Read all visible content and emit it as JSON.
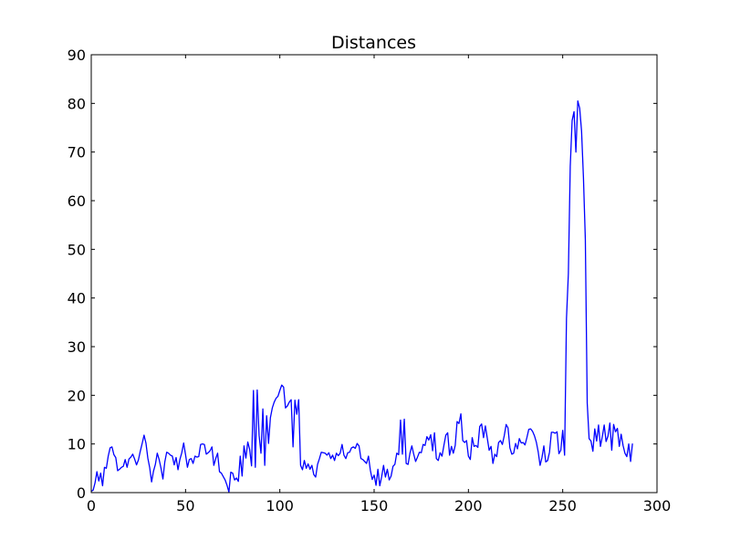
{
  "chart_data": {
    "type": "line",
    "title": "Distances",
    "xlabel": "",
    "ylabel": "",
    "xlim": [
      0,
      300
    ],
    "ylim": [
      0,
      90
    ],
    "x_ticks": [
      0,
      50,
      100,
      150,
      200,
      250,
      300
    ],
    "y_ticks": [
      0,
      10,
      20,
      30,
      40,
      50,
      60,
      70,
      80,
      90
    ],
    "grid": false,
    "legend": "none",
    "line_color": "#0000ff",
    "series": [
      {
        "x_start": 0,
        "x_step": 1,
        "values": [
          0.3,
          0.5,
          2.0,
          4.3,
          2.4,
          4.0,
          1.4,
          5.2,
          5.0,
          7.5,
          9.2,
          9.4,
          7.8,
          7.2,
          4.5,
          4.8,
          5.2,
          5.4,
          6.8,
          5.2,
          6.9,
          7.3,
          7.9,
          6.9,
          5.7,
          6.7,
          8.5,
          10.1,
          11.8,
          10.2,
          7.1,
          5.1,
          2.2,
          4.4,
          5.8,
          8.1,
          6.8,
          5.0,
          2.8,
          6.3,
          8.3,
          8.1,
          7.7,
          7.5,
          5.7,
          7.2,
          4.7,
          6.8,
          8.2,
          10.2,
          7.8,
          5.2,
          6.8,
          7.0,
          6.0,
          7.5,
          7.3,
          7.4,
          9.9,
          10.0,
          9.9,
          7.9,
          8.2,
          8.6,
          9.4,
          5.6,
          7.0,
          8.1,
          4.3,
          4.0,
          3.3,
          2.6,
          1.5,
          0.1,
          4.2,
          4.0,
          2.6,
          3.0,
          2.3,
          7.5,
          3.4,
          9.6,
          7.1,
          10.4,
          8.9,
          5.5,
          21.0,
          5.2,
          21.1,
          11.8,
          8.1,
          17.2,
          5.6,
          15.8,
          10.1,
          15.4,
          17.4,
          18.6,
          19.4,
          19.8,
          21.0,
          22.1,
          21.7,
          17.4,
          17.8,
          18.6,
          19.1,
          9.4,
          19.0,
          16.1,
          19.1,
          5.6,
          4.7,
          6.6,
          5.0,
          5.9,
          4.8,
          5.6,
          3.7,
          3.2,
          5.8,
          7.0,
          8.3,
          8.2,
          8.1,
          7.7,
          8.2,
          7.0,
          7.7,
          6.6,
          8.1,
          7.6,
          8.1,
          9.9,
          7.7,
          7.0,
          8.2,
          8.3,
          9.2,
          9.4,
          9.1,
          10.1,
          9.6,
          7.0,
          6.8,
          6.4,
          6.0,
          7.5,
          4.6,
          2.7,
          3.6,
          1.5,
          4.8,
          1.4,
          3.3,
          5.6,
          3.2,
          4.8,
          2.6,
          3.4,
          5.4,
          5.8,
          8.1,
          7.8,
          14.9,
          7.9,
          15.1,
          6.0,
          5.8,
          8.1,
          9.6,
          7.9,
          6.4,
          7.3,
          8.3,
          8.2,
          9.9,
          9.7,
          11.5,
          10.8,
          11.9,
          8.6,
          12.3,
          7.0,
          6.6,
          8.2,
          7.5,
          9.7,
          11.8,
          12.3,
          7.7,
          9.5,
          8.1,
          9.7,
          14.6,
          14.2,
          16.2,
          10.7,
          10.3,
          10.7,
          7.5,
          6.8,
          11.3,
          9.5,
          9.7,
          9.3,
          13.6,
          14.1,
          11.3,
          13.7,
          11.2,
          8.7,
          9.5,
          6.0,
          7.9,
          7.4,
          10.3,
          10.7,
          9.9,
          11.7,
          14.0,
          13.3,
          9.2,
          7.9,
          8.1,
          10.1,
          9.0,
          11.1,
          10.2,
          10.3,
          9.8,
          11.3,
          13.0,
          13.1,
          12.6,
          11.7,
          10.4,
          8.4,
          5.6,
          7.2,
          9.6,
          6.3,
          6.6,
          8.3,
          12.4,
          12.4,
          12.2,
          12.5,
          8.0,
          8.7,
          12.8,
          7.7,
          35.8,
          45.0,
          67.1,
          76.5,
          78.3,
          70.0,
          80.5,
          79.0,
          74.3,
          64.7,
          52.0,
          18.4,
          11.1,
          10.6,
          8.5,
          13.1,
          10.6,
          13.9,
          9.5,
          11.5,
          13.9,
          10.5,
          11.6,
          14.3,
          8.7,
          14.0,
          12.5,
          13.2,
          9.5,
          12.0,
          9.7,
          8.1,
          7.4,
          10.0,
          6.4,
          10.1
        ]
      }
    ]
  }
}
